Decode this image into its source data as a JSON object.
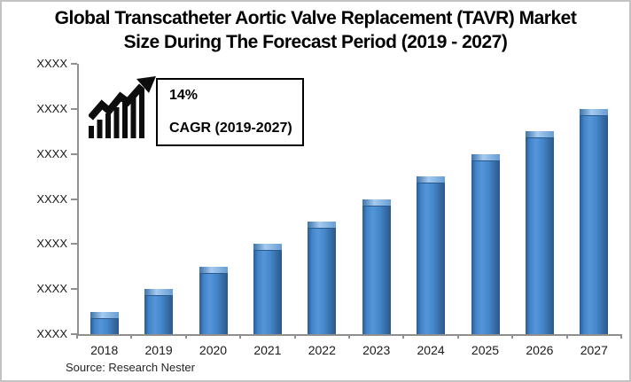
{
  "title": {
    "line1": "Global Transcatheter Aortic Valve Replacement (TAVR) Market",
    "line2": "Size During The Forecast Period (2019 - 2027)"
  },
  "annotation": {
    "cagr_value": "14%",
    "cagr_label": "CAGR (2019-2027)",
    "icon": "growth-chart-icon"
  },
  "source": "Source: Research Nester",
  "chart_data": {
    "type": "bar",
    "title": "Global Transcatheter Aortic Valve Replacement (TAVR) Market Size During The Forecast Period (2019 - 2027)",
    "categories": [
      "2018",
      "2019",
      "2020",
      "2021",
      "2022",
      "2023",
      "2024",
      "2025",
      "2026",
      "2027"
    ],
    "values": [
      0.5,
      1,
      1.5,
      2,
      2.5,
      3,
      3.5,
      4,
      4.5,
      5
    ],
    "value_note": "Y-axis tick labels are masked as XXXX in the image; values are expressed in axis tick units (baseline 0 to top tick 6).",
    "yticklabels": [
      "XXXX",
      "XXXX",
      "XXXX",
      "XXXX",
      "XXXX",
      "XXXX",
      "XXXX"
    ],
    "ylim": [
      0,
      6
    ],
    "xlabel": "",
    "ylabel": "",
    "grid": false,
    "legend": false,
    "bar_color": "#3f7cc1",
    "annotations": [
      "14% CAGR (2019-2027)"
    ]
  },
  "colors": {
    "bar_main": "#3f7cc1",
    "bar_edge_dark": "#2b5a91",
    "bar_bevel_light": "#a5cbf0",
    "axis": "#8f8f8f",
    "frame_border": "#c3c3c3",
    "annotation_border": "#000000",
    "text": "#000000"
  }
}
